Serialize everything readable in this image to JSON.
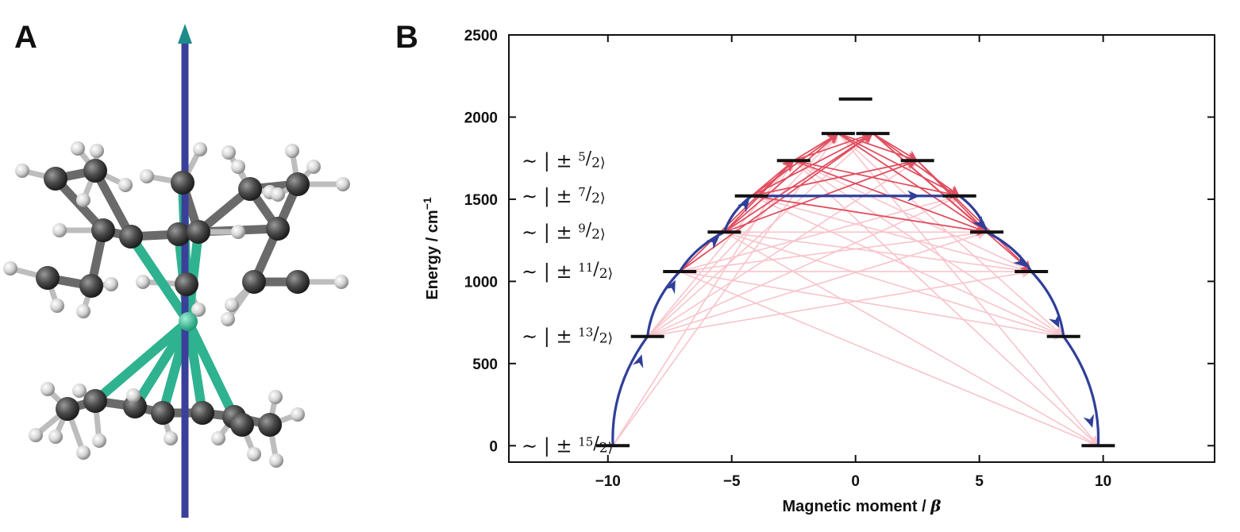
{
  "panels": {
    "a_label": "A",
    "b_label": "B"
  },
  "colors": {
    "direct_transition": "#2f3f9a",
    "strong_transition": "#e04f60",
    "weak_transition": "#f8c4cb",
    "level": "#111111",
    "carbon": "#555555",
    "hydrogen": "#e8e8e8",
    "metal_bond": "#2fb28f",
    "axis_shaft": "#3a3f9a",
    "axis_tip": "#1f8a8a"
  },
  "molecule": {
    "atoms": [
      "carbon",
      "hydrogen",
      "dysprosium"
    ],
    "bond_colors": [
      "carbon",
      "metal_bond"
    ],
    "axis_icon": "anisotropy-axis-arrow"
  },
  "chart_data": {
    "type": "scatter",
    "title": "",
    "xlabel": "Magnetic moment / ",
    "xlabel_symbol": "β",
    "ylabel": "Energy / cm",
    "ylabel_superscript": "−1",
    "xlim": [
      -14,
      14.5
    ],
    "ylim": [
      -100,
      2500
    ],
    "xticks": [
      -10,
      -5,
      0,
      5,
      10
    ],
    "xtick_labels": [
      "−10",
      "−5",
      "0",
      "5",
      "10"
    ],
    "yticks": [
      0,
      500,
      1000,
      1500,
      2000,
      2500
    ],
    "ytick_labels": [
      "0",
      "500",
      "1000",
      "1500",
      "2000",
      "2500"
    ],
    "grid": false,
    "levels": [
      {
        "x": -9.8,
        "energy": 0
      },
      {
        "x": 9.8,
        "energy": 0
      },
      {
        "x": -8.4,
        "energy": 665
      },
      {
        "x": 8.4,
        "energy": 665
      },
      {
        "x": -7.1,
        "energy": 1060
      },
      {
        "x": 7.1,
        "energy": 1060
      },
      {
        "x": -5.3,
        "energy": 1300
      },
      {
        "x": 5.3,
        "energy": 1300
      },
      {
        "x": -4.2,
        "energy": 1520
      },
      {
        "x": 4.2,
        "energy": 1520
      },
      {
        "x": -2.5,
        "energy": 1735
      },
      {
        "x": 2.5,
        "energy": 1735
      },
      {
        "x": -0.7,
        "energy": 1900
      },
      {
        "x": 0.7,
        "energy": 1900
      },
      {
        "x": 0.0,
        "energy": 2110
      }
    ],
    "state_labels": [
      {
        "energy": 1735,
        "prefix": "∼ | ± ",
        "numerator": "5",
        "denominator": "2⟩"
      },
      {
        "energy": 1520,
        "prefix": "∼ | ± ",
        "numerator": "7",
        "denominator": "2⟩"
      },
      {
        "energy": 1300,
        "prefix": "∼ | ± ",
        "numerator": "9",
        "denominator": "2⟩"
      },
      {
        "energy": 1060,
        "prefix": "∼ | ± ",
        "numerator": "11",
        "denominator": "2⟩"
      },
      {
        "energy": 665,
        "prefix": "∼ | ± ",
        "numerator": "13",
        "denominator": "2⟩"
      },
      {
        "energy": 0,
        "prefix": "∼ | ± ",
        "numerator": "15",
        "denominator": "2⟩"
      }
    ],
    "relaxation_path": {
      "points": [
        {
          "x": -9.8,
          "y": 0
        },
        {
          "x": -8.4,
          "y": 665
        },
        {
          "x": -7.1,
          "y": 1060
        },
        {
          "x": -5.3,
          "y": 1300
        },
        {
          "x": -4.2,
          "y": 1520
        },
        {
          "x": 4.2,
          "y": 1520
        },
        {
          "x": 5.3,
          "y": 1300
        },
        {
          "x": 7.1,
          "y": 1060
        },
        {
          "x": 8.4,
          "y": 665
        },
        {
          "x": 9.8,
          "y": 0
        }
      ]
    },
    "strong_transitions": [
      {
        "from": [
          -2.5,
          1735
        ],
        "to": [
          -0.7,
          1900
        ]
      },
      {
        "from": [
          -2.5,
          1735
        ],
        "to": [
          0.7,
          1900
        ]
      },
      {
        "from": [
          -4.2,
          1520
        ],
        "to": [
          -0.7,
          1900
        ]
      },
      {
        "from": [
          -4.2,
          1520
        ],
        "to": [
          0.7,
          1900
        ]
      },
      {
        "from": [
          -4.2,
          1520
        ],
        "to": [
          -2.5,
          1735
        ]
      },
      {
        "from": [
          -4.2,
          1520
        ],
        "to": [
          2.5,
          1735
        ]
      },
      {
        "from": [
          -5.3,
          1300
        ],
        "to": [
          -0.7,
          1900
        ]
      },
      {
        "from": [
          -5.3,
          1300
        ],
        "to": [
          0.7,
          1900
        ]
      },
      {
        "from": [
          -5.3,
          1300
        ],
        "to": [
          -2.5,
          1735
        ]
      },
      {
        "from": [
          -5.3,
          1300
        ],
        "to": [
          2.5,
          1735
        ]
      },
      {
        "from": [
          -7.1,
          1060
        ],
        "to": [
          0.7,
          1900
        ]
      },
      {
        "from": [
          -7.1,
          1060
        ],
        "to": [
          -2.5,
          1735
        ]
      },
      {
        "from": [
          -0.7,
          1900
        ],
        "to": [
          2.5,
          1735
        ]
      },
      {
        "from": [
          0.7,
          1900
        ],
        "to": [
          2.5,
          1735
        ]
      },
      {
        "from": [
          -0.7,
          1900
        ],
        "to": [
          4.2,
          1520
        ]
      },
      {
        "from": [
          0.7,
          1900
        ],
        "to": [
          4.2,
          1520
        ]
      },
      {
        "from": [
          -2.5,
          1735
        ],
        "to": [
          4.2,
          1520
        ]
      },
      {
        "from": [
          -0.7,
          1900
        ],
        "to": [
          5.3,
          1300
        ]
      },
      {
        "from": [
          0.7,
          1900
        ],
        "to": [
          5.3,
          1300
        ]
      },
      {
        "from": [
          -2.5,
          1735
        ],
        "to": [
          5.3,
          1300
        ]
      },
      {
        "from": [
          2.5,
          1735
        ],
        "to": [
          5.3,
          1300
        ]
      },
      {
        "from": [
          0.7,
          1900
        ],
        "to": [
          7.1,
          1060
        ]
      },
      {
        "from": [
          2.5,
          1735
        ],
        "to": [
          7.1,
          1060
        ]
      },
      {
        "from": [
          -4.2,
          1520
        ],
        "to": [
          5.3,
          1300
        ]
      }
    ],
    "weak_transitions": [
      {
        "from": [
          -9.8,
          0
        ],
        "to": [
          -2.5,
          1735
        ]
      },
      {
        "from": [
          -9.8,
          0
        ],
        "to": [
          -0.7,
          1900
        ]
      },
      {
        "from": [
          -8.4,
          665
        ],
        "to": [
          -2.5,
          1735
        ]
      },
      {
        "from": [
          -8.4,
          665
        ],
        "to": [
          -0.7,
          1900
        ]
      },
      {
        "from": [
          -8.4,
          665
        ],
        "to": [
          0.7,
          1900
        ]
      },
      {
        "from": [
          -8.4,
          665
        ],
        "to": [
          2.5,
          1735
        ]
      },
      {
        "from": [
          -8.4,
          665
        ],
        "to": [
          4.2,
          1520
        ]
      },
      {
        "from": [
          -8.4,
          665
        ],
        "to": [
          5.3,
          1300
        ]
      },
      {
        "from": [
          -8.4,
          665
        ],
        "to": [
          7.1,
          1060
        ]
      },
      {
        "from": [
          -7.1,
          1060
        ],
        "to": [
          4.2,
          1520
        ]
      },
      {
        "from": [
          -7.1,
          1060
        ],
        "to": [
          5.3,
          1300
        ]
      },
      {
        "from": [
          -7.1,
          1060
        ],
        "to": [
          7.1,
          1060
        ]
      },
      {
        "from": [
          -7.1,
          1060
        ],
        "to": [
          8.4,
          665
        ]
      },
      {
        "from": [
          -5.3,
          1300
        ],
        "to": [
          7.1,
          1060
        ]
      },
      {
        "from": [
          -5.3,
          1300
        ],
        "to": [
          8.4,
          665
        ]
      },
      {
        "from": [
          -4.2,
          1520
        ],
        "to": [
          7.1,
          1060
        ]
      },
      {
        "from": [
          -4.2,
          1520
        ],
        "to": [
          8.4,
          665
        ]
      },
      {
        "from": [
          -2.5,
          1735
        ],
        "to": [
          7.1,
          1060
        ]
      },
      {
        "from": [
          -2.5,
          1735
        ],
        "to": [
          8.4,
          665
        ]
      },
      {
        "from": [
          -2.5,
          1735
        ],
        "to": [
          9.8,
          0
        ]
      },
      {
        "from": [
          -0.7,
          1900
        ],
        "to": [
          8.4,
          665
        ]
      },
      {
        "from": [
          -0.7,
          1900
        ],
        "to": [
          9.8,
          0
        ]
      },
      {
        "from": [
          -5.3,
          1300
        ],
        "to": [
          9.8,
          0
        ]
      },
      {
        "from": [
          -7.1,
          1060
        ],
        "to": [
          9.8,
          0
        ]
      },
      {
        "from": [
          -5.3,
          1300
        ],
        "to": [
          5.3,
          1300
        ]
      }
    ]
  }
}
